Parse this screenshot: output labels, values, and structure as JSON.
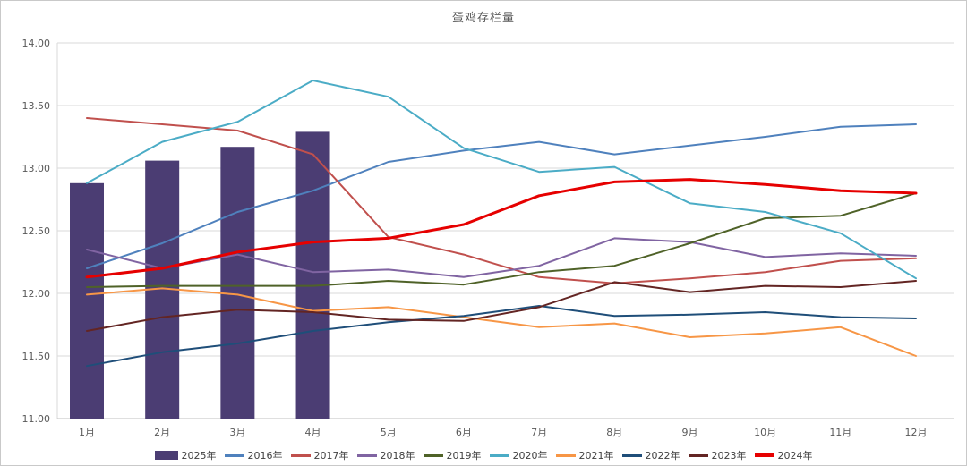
{
  "title": "蛋鸡存栏量",
  "chart_data": {
    "type": "combo-bar-line",
    "categories": [
      "1月",
      "2月",
      "3月",
      "4月",
      "5月",
      "6月",
      "7月",
      "8月",
      "9月",
      "10月",
      "11月",
      "12月"
    ],
    "y_axis": {
      "min": 11.0,
      "max": 14.0,
      "step": 0.5,
      "tick_labels": [
        "14.00",
        "13.50",
        "13.00",
        "12.50",
        "12.00",
        "11.50",
        "11.00"
      ]
    },
    "grid": true,
    "legend_position": "bottom",
    "bar_series": {
      "name": "2025年",
      "color": "#4B3D73",
      "values": [
        12.88,
        13.06,
        13.17,
        13.29,
        null,
        null,
        null,
        null,
        null,
        null,
        null,
        null
      ]
    },
    "line_series": [
      {
        "name": "2016年",
        "color": "#4F81BD",
        "width": 2,
        "values": [
          12.2,
          12.4,
          12.65,
          12.82,
          13.05,
          13.14,
          13.21,
          13.11,
          13.18,
          13.25,
          13.33,
          13.35
        ]
      },
      {
        "name": "2017年",
        "color": "#C0504D",
        "width": 2,
        "values": [
          13.4,
          13.35,
          13.3,
          13.11,
          12.45,
          12.31,
          12.13,
          12.08,
          12.12,
          12.17,
          12.26,
          12.28
        ]
      },
      {
        "name": "2018年",
        "color": "#8064A2",
        "width": 2,
        "values": [
          12.35,
          12.2,
          12.31,
          12.17,
          12.19,
          12.13,
          12.22,
          12.44,
          12.41,
          12.29,
          12.32,
          12.3
        ]
      },
      {
        "name": "2019年",
        "color": "#4F6228",
        "width": 2,
        "values": [
          12.05,
          12.06,
          12.06,
          12.06,
          12.1,
          12.07,
          12.17,
          12.22,
          12.4,
          12.6,
          12.62,
          12.8
        ]
      },
      {
        "name": "2020年",
        "color": "#4BACC6",
        "width": 2,
        "values": [
          12.88,
          13.21,
          13.37,
          13.7,
          13.57,
          13.16,
          12.97,
          13.01,
          12.72,
          12.65,
          12.48,
          12.12
        ]
      },
      {
        "name": "2021年",
        "color": "#F79646",
        "width": 2,
        "values": [
          11.99,
          12.04,
          11.99,
          11.86,
          11.89,
          11.81,
          11.73,
          11.76,
          11.65,
          11.68,
          11.73,
          11.5
        ]
      },
      {
        "name": "2022年",
        "color": "#1F4E79",
        "width": 2,
        "values": [
          11.42,
          11.53,
          11.6,
          11.7,
          11.77,
          11.82,
          11.9,
          11.82,
          11.83,
          11.85,
          11.81,
          11.8
        ]
      },
      {
        "name": "2023年",
        "color": "#632523",
        "width": 2,
        "values": [
          11.7,
          11.81,
          11.87,
          11.85,
          11.79,
          11.78,
          11.89,
          12.09,
          12.01,
          12.06,
          12.05,
          12.1
        ]
      },
      {
        "name": "2024年",
        "color": "#E60000",
        "width": 3,
        "values": [
          12.13,
          12.2,
          12.33,
          12.41,
          12.44,
          12.55,
          12.78,
          12.89,
          12.91,
          12.87,
          12.82,
          12.8
        ]
      }
    ]
  }
}
